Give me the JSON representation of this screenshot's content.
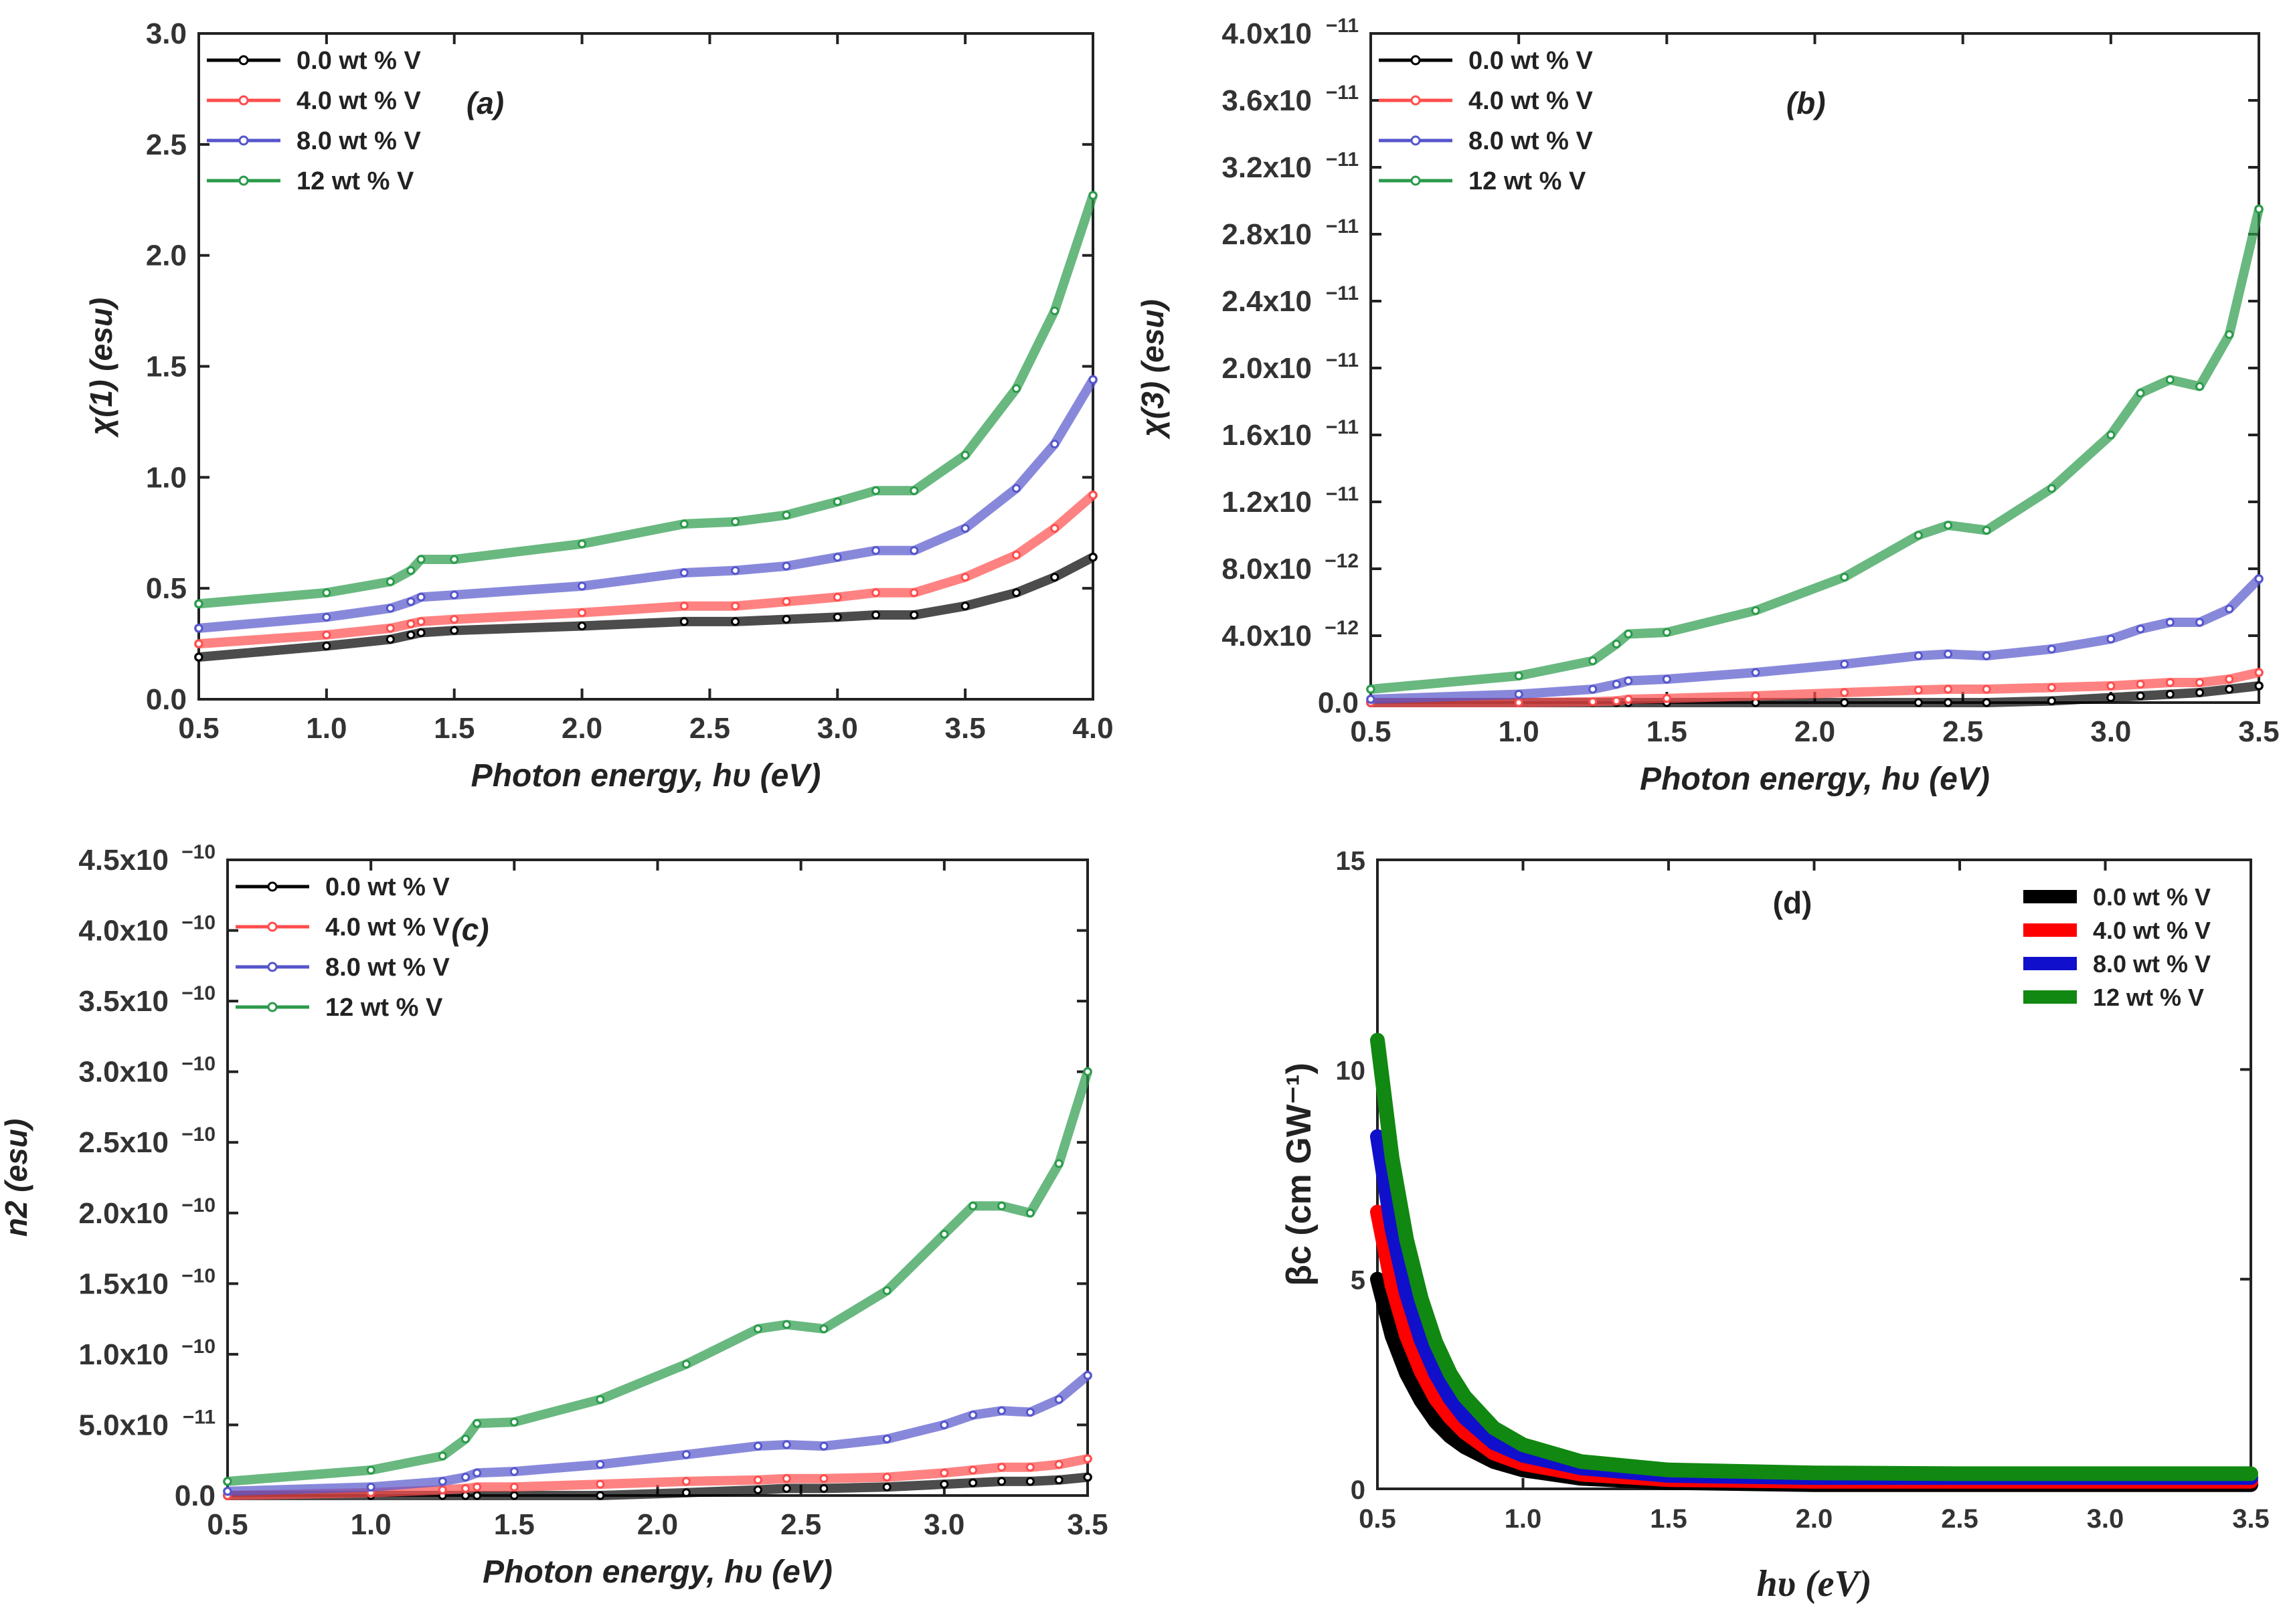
{
  "chart_data": [
    {
      "panel": "(a)",
      "type": "line",
      "xlabel": "Photon energy, hυ (eV)",
      "ylabel": "χ(1) (esu)",
      "xlim": [
        0.5,
        4.0
      ],
      "ylim": [
        0,
        3.0
      ],
      "xticks": [
        0.5,
        1.0,
        1.5,
        2.0,
        2.5,
        3.0,
        3.5,
        4.0
      ],
      "yticks": [
        0.0,
        0.5,
        1.0,
        1.5,
        2.0,
        2.5,
        3.0
      ],
      "xtick_labels": [
        "0.5",
        "1.0",
        "1.5",
        "2.0",
        "2.5",
        "3.0",
        "3.5",
        "4.0"
      ],
      "ytick_labels": [
        "0.0",
        "0.5",
        "1.0",
        "1.5",
        "2.0",
        "2.5",
        "3.0"
      ],
      "legend": "top-left",
      "x": [
        0.5,
        1.0,
        1.25,
        1.33,
        1.37,
        1.5,
        2.0,
        2.4,
        2.6,
        2.8,
        3.0,
        3.15,
        3.3,
        3.5,
        3.7,
        3.85,
        4.0
      ],
      "series": [
        {
          "name": "0.0 wt % V",
          "color": "#000000",
          "values": [
            0.19,
            0.24,
            0.27,
            0.29,
            0.3,
            0.31,
            0.33,
            0.35,
            0.35,
            0.36,
            0.37,
            0.38,
            0.38,
            0.42,
            0.48,
            0.55,
            0.64
          ]
        },
        {
          "name": "4.0 wt % V",
          "color": "#ff4d4d",
          "values": [
            0.25,
            0.29,
            0.32,
            0.34,
            0.35,
            0.36,
            0.39,
            0.42,
            0.42,
            0.44,
            0.46,
            0.48,
            0.48,
            0.55,
            0.65,
            0.77,
            0.92
          ]
        },
        {
          "name": "8.0 wt % V",
          "color": "#5555cc",
          "values": [
            0.32,
            0.37,
            0.41,
            0.44,
            0.46,
            0.47,
            0.51,
            0.57,
            0.58,
            0.6,
            0.64,
            0.67,
            0.67,
            0.77,
            0.95,
            1.15,
            1.44
          ]
        },
        {
          "name": "12  wt % V",
          "color": "#2a9a4a",
          "values": [
            0.43,
            0.48,
            0.53,
            0.58,
            0.63,
            0.63,
            0.7,
            0.79,
            0.8,
            0.83,
            0.89,
            0.94,
            0.94,
            1.1,
            1.4,
            1.75,
            2.27
          ]
        }
      ]
    },
    {
      "panel": "(b)",
      "type": "line",
      "xlabel": "Photon energy, hυ (eV)",
      "ylabel": "χ(3) (esu)",
      "xlim": [
        0.5,
        3.5
      ],
      "ylim": [
        0,
        4e-11
      ],
      "xticks": [
        0.5,
        1.0,
        1.5,
        2.0,
        2.5,
        3.0,
        3.5
      ],
      "yticks": [
        0,
        4e-12,
        8e-12,
        1.2e-11,
        1.6e-11,
        2e-11,
        2.4e-11,
        2.8e-11,
        3.2e-11,
        3.6e-11,
        4e-11
      ],
      "xtick_labels": [
        "0.5",
        "1.0",
        "1.5",
        "2.0",
        "2.5",
        "3.0",
        "3.5"
      ],
      "ytick_labels": [
        "0.0",
        "4.0x10",
        "8.0x10",
        "1.2x10",
        "1.6x10",
        "2.0x10",
        "2.4x10",
        "2.8x10",
        "3.2x10",
        "3.6x10",
        "4.0x10"
      ],
      "ytick_exponents": [
        "",
        "−12",
        "−12",
        "−11",
        "−11",
        "−11",
        "−11",
        "−11",
        "−11",
        "−11",
        "−11"
      ],
      "legend": "top-left",
      "x": [
        0.5,
        1.0,
        1.25,
        1.33,
        1.37,
        1.5,
        1.8,
        2.1,
        2.35,
        2.45,
        2.58,
        2.8,
        3.0,
        3.1,
        3.2,
        3.3,
        3.4,
        3.5
      ],
      "series": [
        {
          "name": "0.0 wt % V",
          "color": "#000000",
          "values": [
            0,
            0,
            0,
            0,
            0,
            0,
            0,
            0,
            0,
            0,
            0,
            1e-13,
            3e-13,
            4e-13,
            5e-13,
            6e-13,
            8e-13,
            1e-12
          ]
        },
        {
          "name": "4.0 wt % V",
          "color": "#ff4d4d",
          "values": [
            0,
            0,
            5e-14,
            1e-13,
            2e-13,
            2.5e-13,
            4e-13,
            6e-13,
            7.5e-13,
            8e-13,
            8e-13,
            9e-13,
            1e-12,
            1.1e-12,
            1.2e-12,
            1.2e-12,
            1.4e-12,
            1.8e-12
          ]
        },
        {
          "name": "8.0 wt % V",
          "color": "#5555cc",
          "values": [
            2e-13,
            5e-13,
            8e-13,
            1.1e-12,
            1.3e-12,
            1.4e-12,
            1.8e-12,
            2.3e-12,
            2.8e-12,
            2.9e-12,
            2.8e-12,
            3.2e-12,
            3.8e-12,
            4.4e-12,
            4.8e-12,
            4.8e-12,
            5.6e-12,
            7.4e-12
          ]
        },
        {
          "name": "12  wt % V",
          "color": "#2a9a4a",
          "values": [
            8e-13,
            1.6e-12,
            2.5e-12,
            3.5e-12,
            4.1e-12,
            4.2e-12,
            5.5e-12,
            7.5e-12,
            1e-11,
            1.06e-11,
            1.03e-11,
            1.28e-11,
            1.6e-11,
            1.85e-11,
            1.93e-11,
            1.89e-11,
            2.2e-11,
            2.95e-11
          ]
        }
      ]
    },
    {
      "panel": "(c)",
      "type": "line",
      "xlabel": "Photon energy, hυ (eV)",
      "ylabel": "n2 (esu)",
      "xlim": [
        0.5,
        3.5
      ],
      "ylim": [
        0,
        4.5e-10
      ],
      "xticks": [
        0.5,
        1.0,
        1.5,
        2.0,
        2.5,
        3.0,
        3.5
      ],
      "yticks": [
        0,
        5e-11,
        1e-10,
        1.5e-10,
        2e-10,
        2.5e-10,
        3e-10,
        3.5e-10,
        4e-10,
        4.5e-10
      ],
      "xtick_labels": [
        "0.5",
        "1.0",
        "1.5",
        "2.0",
        "2.5",
        "3.0",
        "3.5"
      ],
      "ytick_labels": [
        "0.0",
        "5.0x10",
        "1.0x10",
        "1.5x10",
        "2.0x10",
        "2.5x10",
        "3.0x10",
        "3.5x10",
        "4.0x10",
        "4.5x10"
      ],
      "ytick_exponents": [
        "",
        "−11",
        "−10",
        "−10",
        "−10",
        "−10",
        "−10",
        "−10",
        "−10",
        "−10"
      ],
      "legend": "top-left",
      "x": [
        0.5,
        1.0,
        1.25,
        1.33,
        1.37,
        1.5,
        1.8,
        2.1,
        2.35,
        2.45,
        2.58,
        2.8,
        3.0,
        3.1,
        3.2,
        3.3,
        3.4,
        3.5
      ],
      "series": [
        {
          "name": "0.0 wt % V",
          "color": "#000000",
          "values": [
            0,
            0,
            0,
            0,
            0,
            0,
            0,
            2e-12,
            4e-12,
            5e-12,
            5e-12,
            6e-12,
            8e-12,
            9e-12,
            1e-11,
            1e-11,
            1.1e-11,
            1.3e-11
          ]
        },
        {
          "name": "4.0 wt % V",
          "color": "#ff4d4d",
          "values": [
            0,
            2e-12,
            4e-12,
            5e-12,
            6e-12,
            6e-12,
            8e-12,
            1e-11,
            1.1e-11,
            1.2e-11,
            1.2e-11,
            1.3e-11,
            1.6e-11,
            1.8e-11,
            2e-11,
            2e-11,
            2.2e-11,
            2.6e-11
          ]
        },
        {
          "name": "8.0 wt % V",
          "color": "#5555cc",
          "values": [
            3e-12,
            6e-12,
            1e-11,
            1.3e-11,
            1.6e-11,
            1.7e-11,
            2.2e-11,
            2.9e-11,
            3.5e-11,
            3.6e-11,
            3.5e-11,
            4e-11,
            5e-11,
            5.7e-11,
            6e-11,
            5.9e-11,
            6.8e-11,
            8.5e-11
          ]
        },
        {
          "name": "12  wt % V",
          "color": "#2a9a4a",
          "values": [
            1e-11,
            1.8e-11,
            2.8e-11,
            4e-11,
            5.1e-11,
            5.2e-11,
            6.8e-11,
            9.3e-11,
            1.18e-10,
            1.21e-10,
            1.18e-10,
            1.45e-10,
            1.85e-10,
            2.05e-10,
            2.05e-10,
            2e-10,
            2.35e-10,
            3e-10
          ]
        }
      ]
    },
    {
      "panel": "(d)",
      "type": "line",
      "xlabel": "hυ (eV)",
      "ylabel": "βc (cm GW⁻¹)",
      "xlim": [
        0.5,
        3.5
      ],
      "ylim": [
        0,
        15
      ],
      "xticks": [
        0.5,
        1.0,
        1.5,
        2.0,
        2.5,
        3.0,
        3.5
      ],
      "yticks": [
        0,
        5,
        10,
        15
      ],
      "xtick_labels": [
        "0.5",
        "1.0",
        "1.5",
        "2.0",
        "2.5",
        "3.0",
        "3.5"
      ],
      "ytick_labels": [
        "0",
        "5",
        "10",
        "15"
      ],
      "legend": "top-right",
      "x": [
        0.5,
        0.55,
        0.6,
        0.65,
        0.7,
        0.75,
        0.8,
        0.9,
        1.0,
        1.2,
        1.5,
        2.0,
        2.5,
        3.0,
        3.5
      ],
      "series": [
        {
          "name": "0.0 wt % V",
          "color": "#000000",
          "values": [
            5.0,
            3.65,
            2.75,
            2.1,
            1.6,
            1.25,
            1.0,
            0.65,
            0.45,
            0.25,
            0.15,
            0.1,
            0.1,
            0.1,
            0.1
          ]
        },
        {
          "name": "4.0 wt % V",
          "color": "#ff0000",
          "values": [
            6.6,
            4.85,
            3.65,
            2.8,
            2.15,
            1.7,
            1.35,
            0.85,
            0.6,
            0.35,
            0.22,
            0.18,
            0.18,
            0.18,
            0.18
          ]
        },
        {
          "name": "8.0 wt % V",
          "color": "#1010cc",
          "values": [
            8.4,
            6.2,
            4.65,
            3.55,
            2.75,
            2.15,
            1.7,
            1.1,
            0.8,
            0.5,
            0.32,
            0.27,
            0.27,
            0.27,
            0.27
          ]
        },
        {
          "name": "12  wt % V",
          "color": "#118811",
          "values": [
            10.7,
            7.9,
            5.95,
            4.55,
            3.5,
            2.75,
            2.2,
            1.45,
            1.05,
            0.65,
            0.45,
            0.38,
            0.36,
            0.36,
            0.36
          ]
        }
      ]
    }
  ],
  "panel_labels": [
    "(a)",
    "(b)",
    "(c)",
    "(d)"
  ]
}
